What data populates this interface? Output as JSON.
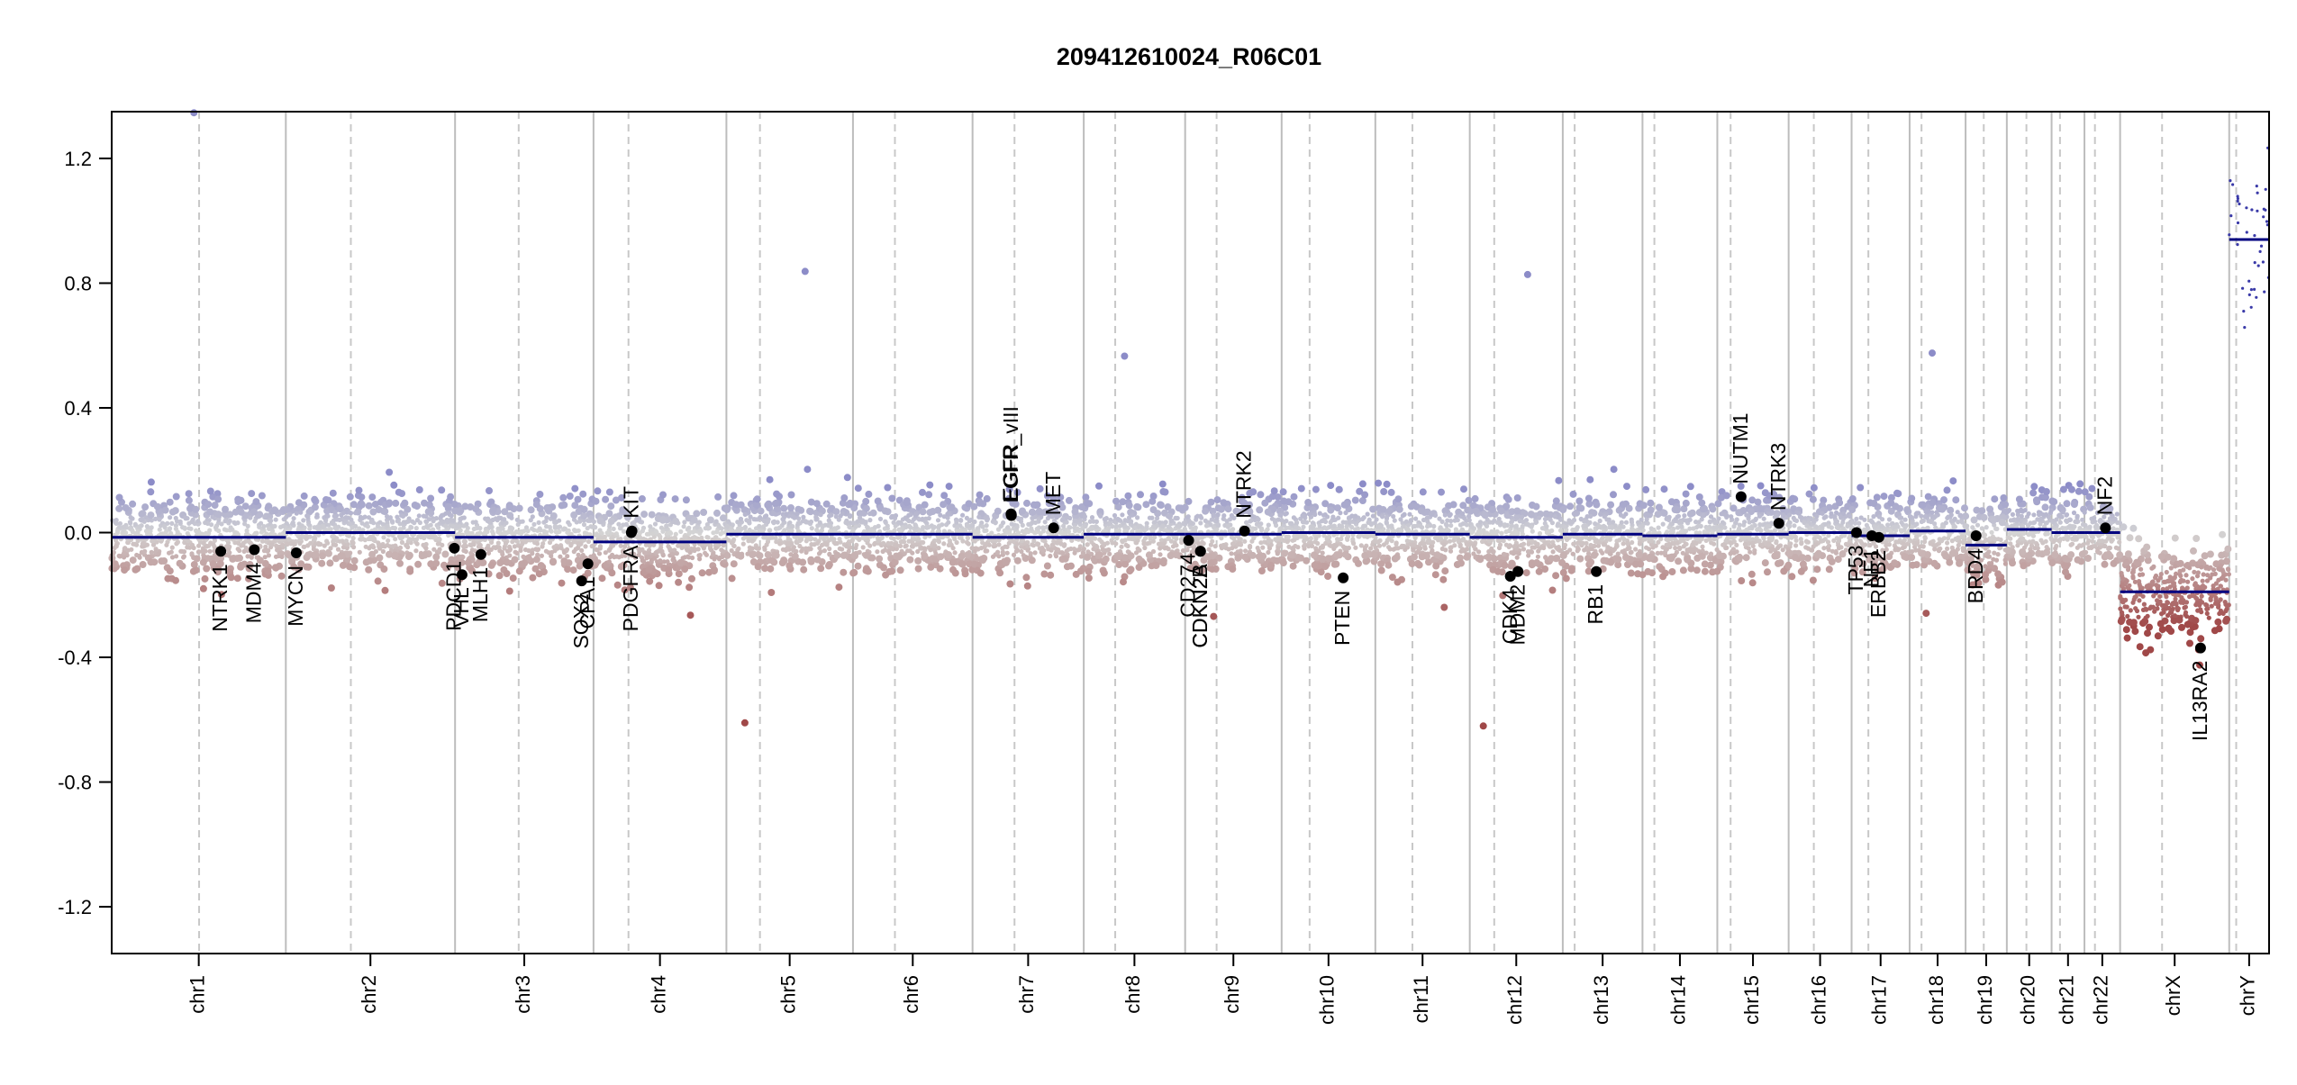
{
  "chart_data": {
    "type": "scatter",
    "title": "209412610024_R06C01",
    "xlabel": "",
    "ylabel": "",
    "ylim": [
      -1.35,
      1.35
    ],
    "yticks": [
      "1.2",
      "0.8",
      "0.4",
      "0.0",
      "-0.4",
      "-0.8",
      "-1.2"
    ],
    "grid": "chromosome boundaries (solid) and centromeres (dashed)",
    "colors": {
      "gain": "#8c8cc8",
      "neutral": "#d4d4d4",
      "loss": "#a04848",
      "segment": "#00007f",
      "gene": "#000000"
    },
    "chromosomes": [
      {
        "name": "chr1",
        "length": 249,
        "centromere": 125,
        "segments": [
          {
            "s": 0,
            "e": 249,
            "v": -0.015
          }
        ],
        "noise": 0.055
      },
      {
        "name": "chr2",
        "length": 242,
        "centromere": 93,
        "segments": [
          {
            "s": 0,
            "e": 242,
            "v": 0.0
          }
        ],
        "noise": 0.055
      },
      {
        "name": "chr3",
        "length": 198,
        "centromere": 91,
        "segments": [
          {
            "s": 0,
            "e": 198,
            "v": -0.015
          }
        ],
        "noise": 0.055
      },
      {
        "name": "chr4",
        "length": 190,
        "centromere": 50,
        "segments": [
          {
            "s": 0,
            "e": 190,
            "v": -0.03
          }
        ],
        "noise": 0.055
      },
      {
        "name": "chr5",
        "length": 181,
        "centromere": 48,
        "segments": [
          {
            "s": 0,
            "e": 181,
            "v": -0.005
          }
        ],
        "noise": 0.055
      },
      {
        "name": "chr6",
        "length": 171,
        "centromere": 60,
        "segments": [
          {
            "s": 0,
            "e": 171,
            "v": -0.005
          }
        ],
        "noise": 0.055
      },
      {
        "name": "chr7",
        "length": 159,
        "centromere": 60,
        "segments": [
          {
            "s": 0,
            "e": 159,
            "v": -0.015
          }
        ],
        "noise": 0.055
      },
      {
        "name": "chr8",
        "length": 145,
        "centromere": 45,
        "segments": [
          {
            "s": 0,
            "e": 145,
            "v": -0.005
          }
        ],
        "noise": 0.055
      },
      {
        "name": "chr9",
        "length": 138,
        "centromere": 45,
        "segments": [
          {
            "s": 0,
            "e": 138,
            "v": -0.005
          }
        ],
        "noise": 0.055
      },
      {
        "name": "chr10",
        "length": 134,
        "centromere": 40,
        "segments": [
          {
            "s": 0,
            "e": 134,
            "v": 0.0
          }
        ],
        "noise": 0.055
      },
      {
        "name": "chr11",
        "length": 135,
        "centromere": 53,
        "segments": [
          {
            "s": 0,
            "e": 135,
            "v": -0.005
          }
        ],
        "noise": 0.055
      },
      {
        "name": "chr12",
        "length": 133,
        "centromere": 35,
        "segments": [
          {
            "s": 0,
            "e": 133,
            "v": -0.015
          }
        ],
        "noise": 0.055
      },
      {
        "name": "chr13",
        "length": 114,
        "centromere": 17,
        "segments": [
          {
            "s": 0,
            "e": 114,
            "v": -0.005
          }
        ],
        "noise": 0.055
      },
      {
        "name": "chr14",
        "length": 107,
        "centromere": 17,
        "segments": [
          {
            "s": 0,
            "e": 107,
            "v": -0.01
          }
        ],
        "noise": 0.055
      },
      {
        "name": "chr15",
        "length": 102,
        "centromere": 19,
        "segments": [
          {
            "s": 0,
            "e": 102,
            "v": -0.005
          }
        ],
        "noise": 0.055
      },
      {
        "name": "chr16",
        "length": 90,
        "centromere": 36,
        "segments": [
          {
            "s": 0,
            "e": 90,
            "v": 0.0
          }
        ],
        "noise": 0.055
      },
      {
        "name": "chr17",
        "length": 83,
        "centromere": 24,
        "segments": [
          {
            "s": 0,
            "e": 83,
            "v": -0.01
          }
        ],
        "noise": 0.055
      },
      {
        "name": "chr18",
        "length": 80,
        "centromere": 17,
        "segments": [
          {
            "s": 0,
            "e": 80,
            "v": 0.005
          }
        ],
        "noise": 0.055
      },
      {
        "name": "chr19",
        "length": 59,
        "centromere": 26,
        "segments": [
          {
            "s": 0,
            "e": 59,
            "v": -0.04
          }
        ],
        "noise": 0.06
      },
      {
        "name": "chr20",
        "length": 64,
        "centromere": 28,
        "segments": [
          {
            "s": 0,
            "e": 64,
            "v": 0.01
          }
        ],
        "noise": 0.055
      },
      {
        "name": "chr21",
        "length": 47,
        "centromere": 12,
        "segments": [
          {
            "s": 0,
            "e": 47,
            "v": 0.0
          }
        ],
        "noise": 0.055
      },
      {
        "name": "chr22",
        "length": 51,
        "centromere": 15,
        "segments": [
          {
            "s": 0,
            "e": 51,
            "v": 0.0
          }
        ],
        "noise": 0.055
      },
      {
        "name": "chrX",
        "length": 156,
        "centromere": 60,
        "segments": [
          {
            "s": 0,
            "e": 156,
            "v": -0.19
          }
        ],
        "noise": 0.07
      },
      {
        "name": "chrY",
        "length": 57,
        "centromere": 10,
        "segments": [
          {
            "s": 0,
            "e": 57,
            "v": 0.94
          }
        ],
        "noise": 0.15,
        "sparse": true
      }
    ],
    "genes": [
      {
        "name": "NTRK1",
        "chr": "chr1",
        "pos": 156,
        "value": -0.06
      },
      {
        "name": "MDM4",
        "chr": "chr1",
        "pos": 204,
        "value": -0.055
      },
      {
        "name": "MYCN",
        "chr": "chr2",
        "pos": 15,
        "value": -0.065
      },
      {
        "name": "PDCD1",
        "chr": "chr2",
        "pos": 241,
        "value": -0.05
      },
      {
        "name": "VHL",
        "chr": "chr3",
        "pos": 10,
        "value": -0.135
      },
      {
        "name": "MLH1",
        "chr": "chr3",
        "pos": 37,
        "value": -0.07
      },
      {
        "name": "SOX2",
        "chr": "chr3",
        "pos": 181,
        "value": -0.155
      },
      {
        "name": "CPA1",
        "chr": "chr3",
        "pos": 190,
        "value": -0.1
      },
      {
        "name": "PDGFRA",
        "chr": "chr4",
        "pos": 54,
        "value": 0.0
      },
      {
        "name": "KIT",
        "chr": "chr4",
        "pos": 55,
        "value": 0.005
      },
      {
        "name": "EGFR",
        "chr": "chr7",
        "pos": 55,
        "value": 0.06
      },
      {
        "name": "EGFR_vIII",
        "chr": "chr7",
        "pos": 55.5,
        "value": 0.055
      },
      {
        "name": "MET",
        "chr": "chr7",
        "pos": 116,
        "value": 0.015
      },
      {
        "name": "CD274",
        "chr": "chr9",
        "pos": 5,
        "value": -0.025
      },
      {
        "name": "CDKN2A",
        "chr": "chr9",
        "pos": 21.9,
        "value": -0.06
      },
      {
        "name": "CDKN2B",
        "chr": "chr9",
        "pos": 22,
        "value": -0.06
      },
      {
        "name": "NTRK2",
        "chr": "chr9",
        "pos": 85,
        "value": 0.005
      },
      {
        "name": "PTEN",
        "chr": "chr10",
        "pos": 88,
        "value": -0.145
      },
      {
        "name": "CDK4",
        "chr": "chr12",
        "pos": 58,
        "value": -0.14
      },
      {
        "name": "MDM2",
        "chr": "chr12",
        "pos": 69,
        "value": -0.125
      },
      {
        "name": "RB1",
        "chr": "chr13",
        "pos": 48,
        "value": -0.125
      },
      {
        "name": "NUTM1",
        "chr": "chr15",
        "pos": 34,
        "value": 0.115
      },
      {
        "name": "NTRK3",
        "chr": "chr15",
        "pos": 88,
        "value": 0.03
      },
      {
        "name": "TP53",
        "chr": "chr17",
        "pos": 7,
        "value": 0.0
      },
      {
        "name": "NF1",
        "chr": "chr17",
        "pos": 29,
        "value": -0.01
      },
      {
        "name": "ERBB2",
        "chr": "chr17",
        "pos": 39,
        "value": -0.015
      },
      {
        "name": "BRD4",
        "chr": "chr19",
        "pos": 15,
        "value": -0.01
      },
      {
        "name": "NF2",
        "chr": "chr22",
        "pos": 30,
        "value": 0.015
      },
      {
        "name": "IL13RA2",
        "chr": "chrX",
        "pos": 115,
        "value": -0.37
      }
    ]
  }
}
